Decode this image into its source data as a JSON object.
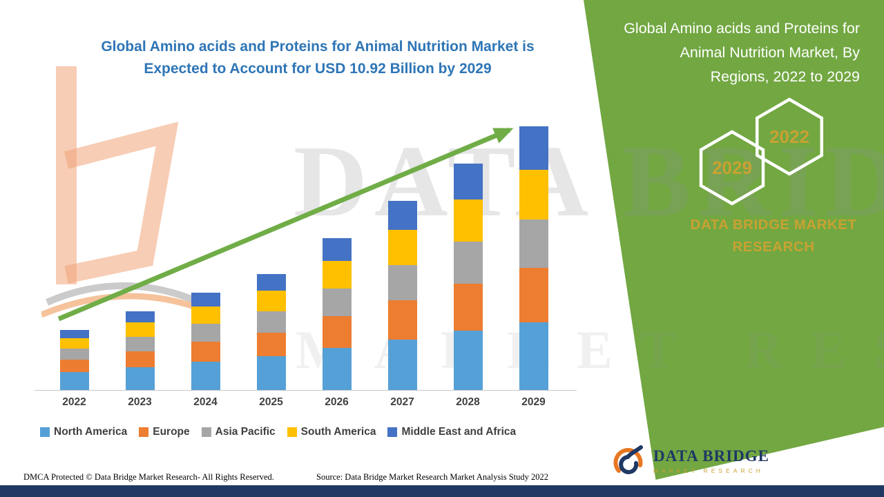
{
  "title": {
    "text": "Global Amino acids and Proteins for Animal Nutrition Market is Expected to Account for USD 10.92 Billion by 2029",
    "color": "#2E75B6"
  },
  "right_panel": {
    "heading": "Global Amino acids and Proteins for Animal Nutrition Market, By Regions, 2022 to 2029",
    "hexagons": [
      {
        "label": "2029"
      },
      {
        "label": "2022"
      }
    ],
    "brand_text": "DATA BRIDGE MARKET RESEARCH",
    "panel_color": "#72A742",
    "gold_color": "#C9A132"
  },
  "watermark": {
    "line1": "DATA BRIDGE",
    "line2": "MARKET RESEARCH"
  },
  "chart_data": {
    "type": "bar",
    "stacked": true,
    "title": "Global Amino acids and Proteins for Animal Nutrition Market is Expected to Account for USD 10.92 Billion by 2029",
    "unit": "USD Billion",
    "categories": [
      "2022",
      "2023",
      "2024",
      "2025",
      "2026",
      "2027",
      "2028",
      "2029"
    ],
    "series": [
      {
        "name": "North America",
        "color": "#55A0D6",
        "values": [
          0.75,
          0.95,
          1.18,
          1.4,
          1.75,
          2.1,
          2.45,
          2.8
        ]
      },
      {
        "name": "Europe",
        "color": "#ED7D31",
        "values": [
          0.5,
          0.66,
          0.82,
          0.98,
          1.3,
          1.63,
          1.95,
          2.25
        ]
      },
      {
        "name": "Asia Pacific",
        "color": "#A6A6A6",
        "values": [
          0.45,
          0.6,
          0.74,
          0.88,
          1.15,
          1.45,
          1.73,
          2.0
        ]
      },
      {
        "name": "South America",
        "color": "#FFC000",
        "values": [
          0.45,
          0.58,
          0.72,
          0.86,
          1.15,
          1.45,
          1.75,
          2.05
        ]
      },
      {
        "name": "Middle East and Africa",
        "color": "#4472C4",
        "values": [
          0.34,
          0.47,
          0.57,
          0.68,
          0.94,
          1.2,
          1.5,
          1.82
        ]
      }
    ],
    "totals": [
      2.49,
      3.26,
      4.03,
      4.8,
      6.29,
      7.83,
      9.38,
      10.92
    ],
    "ylim": [
      0,
      11
    ],
    "grid": false,
    "legend_position": "bottom",
    "annotation": "Green upward trend arrow from 2022 toward 2029 peak"
  },
  "footer": {
    "dmca": "DMCA Protected © Data Bridge Market Research- All Rights Reserved.",
    "source": "Source: Data Bridge Market Research Market Analysis Study 2022",
    "bar_color": "#1F3864"
  },
  "logo": {
    "name": "DATA BRIDGE",
    "tagline": "MARKET RESEARCH"
  }
}
